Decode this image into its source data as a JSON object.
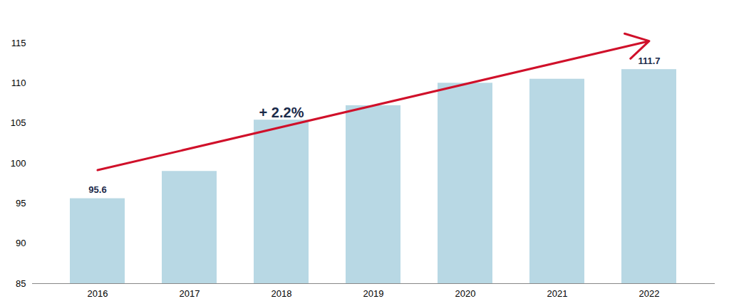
{
  "chart_data": {
    "type": "bar",
    "categories": [
      "2016",
      "2017",
      "2018",
      "2019",
      "2020",
      "2021",
      "2022"
    ],
    "values": [
      95.6,
      99.0,
      105.4,
      107.2,
      110.0,
      110.5,
      111.7
    ],
    "color": "#b8d8e4",
    "ylim": [
      85,
      115
    ],
    "yticks": [
      85,
      90,
      95,
      100,
      105,
      110,
      115
    ],
    "grid": false,
    "data_labels": true,
    "value_labels": [
      "95.6",
      null,
      null,
      null,
      null,
      null,
      "111.7"
    ],
    "annotations": [
      {
        "text": "+ 2.2%",
        "color": "#d0102a"
      }
    ]
  }
}
